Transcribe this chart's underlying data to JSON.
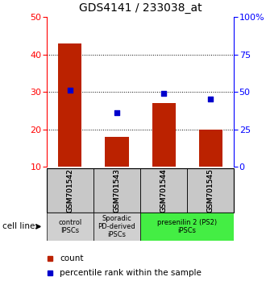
{
  "title": "GDS4141 / 233038_at",
  "samples": [
    "GSM701542",
    "GSM701543",
    "GSM701544",
    "GSM701545"
  ],
  "counts": [
    43,
    18,
    27,
    20
  ],
  "percentiles": [
    30.5,
    24.5,
    29.5,
    28.0
  ],
  "ylim_left": [
    10,
    50
  ],
  "ylim_right": [
    0,
    100
  ],
  "yticks_left": [
    10,
    20,
    30,
    40,
    50
  ],
  "yticks_right": [
    0,
    25,
    50,
    75,
    100
  ],
  "ytick_labels_right": [
    "0",
    "25",
    "50",
    "75",
    "100%"
  ],
  "bar_color": "#bb2200",
  "dot_color": "#0000cc",
  "bar_width": 0.5,
  "group_defs": [
    [
      0,
      0,
      "control\nIPSCs",
      "#d0d0d0"
    ],
    [
      1,
      1,
      "Sporadic\nPD-derived\niPSCs",
      "#d0d0d0"
    ],
    [
      2,
      3,
      "presenilin 2 (PS2)\niPSCs",
      "#44ee44"
    ]
  ],
  "cell_line_label": "cell line",
  "legend_count_label": "count",
  "legend_pct_label": "percentile rank within the sample",
  "sample_box_color": "#c8c8c8",
  "title_fontsize": 10,
  "tick_fontsize": 8,
  "label_fontsize": 7
}
